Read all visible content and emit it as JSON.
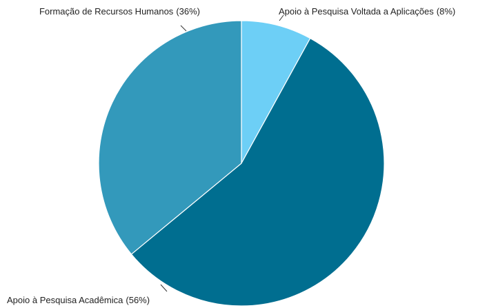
{
  "chart_data": {
    "type": "pie",
    "categories": [
      "Apoio à Pesquisa Voltada a Aplicações",
      "Apoio à Pesquisa Acadêmica",
      "Formação de Recursos Humanos"
    ],
    "values": [
      8,
      56,
      36
    ],
    "value_labels": [
      "(8%)",
      "(56%)",
      "(36%)"
    ],
    "colors": [
      "#6dcff6",
      "#006e90",
      "#3399bb"
    ]
  }
}
